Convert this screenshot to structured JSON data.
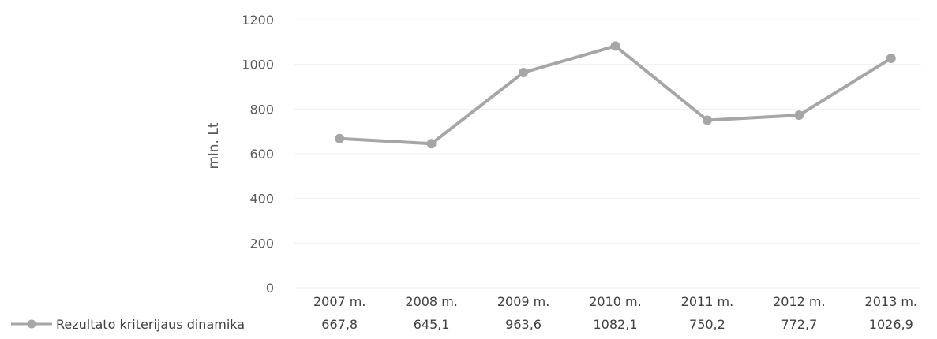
{
  "chart_data": {
    "type": "line",
    "ylabel": "mln. Lt",
    "ylim": [
      0,
      1200
    ],
    "y_ticks": [
      0,
      200,
      400,
      600,
      800,
      1000,
      1200
    ],
    "y_tick_labels": [
      "0",
      "200",
      "400",
      "600",
      "800",
      "1000",
      "1200"
    ],
    "categories": [
      "2007 m.",
      "2008 m.",
      "2009 m.",
      "2010 m.",
      "2011 m.",
      "2012 m.",
      "2013 m."
    ],
    "grid": false,
    "legend": "bottom-left, as data-table row",
    "series": [
      {
        "name": "Rezultato kriterijaus dinamika",
        "color": "#a6a6a6",
        "values": [
          667.8,
          645.1,
          963.6,
          1082.1,
          750.2,
          772.7,
          1026.9
        ],
        "value_labels": [
          "667,8",
          "645,1",
          "963,6",
          "1082,1",
          "750,2",
          "772,7",
          "1026,9"
        ]
      }
    ]
  }
}
